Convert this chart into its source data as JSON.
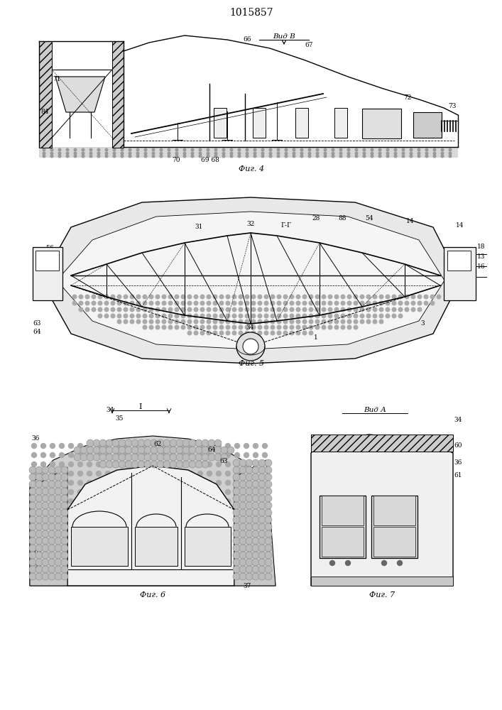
{
  "title": "1015857",
  "background_color": "#ffffff",
  "fig4_caption": "Фиг. 4",
  "fig5_caption": "Фиг. 5",
  "fig6_caption": "Фиг. 6",
  "fig7_caption": "Фиг. 7",
  "vid_b_label": "Вид В",
  "vid_a_label": "Вид А",
  "section_I_label": "I"
}
